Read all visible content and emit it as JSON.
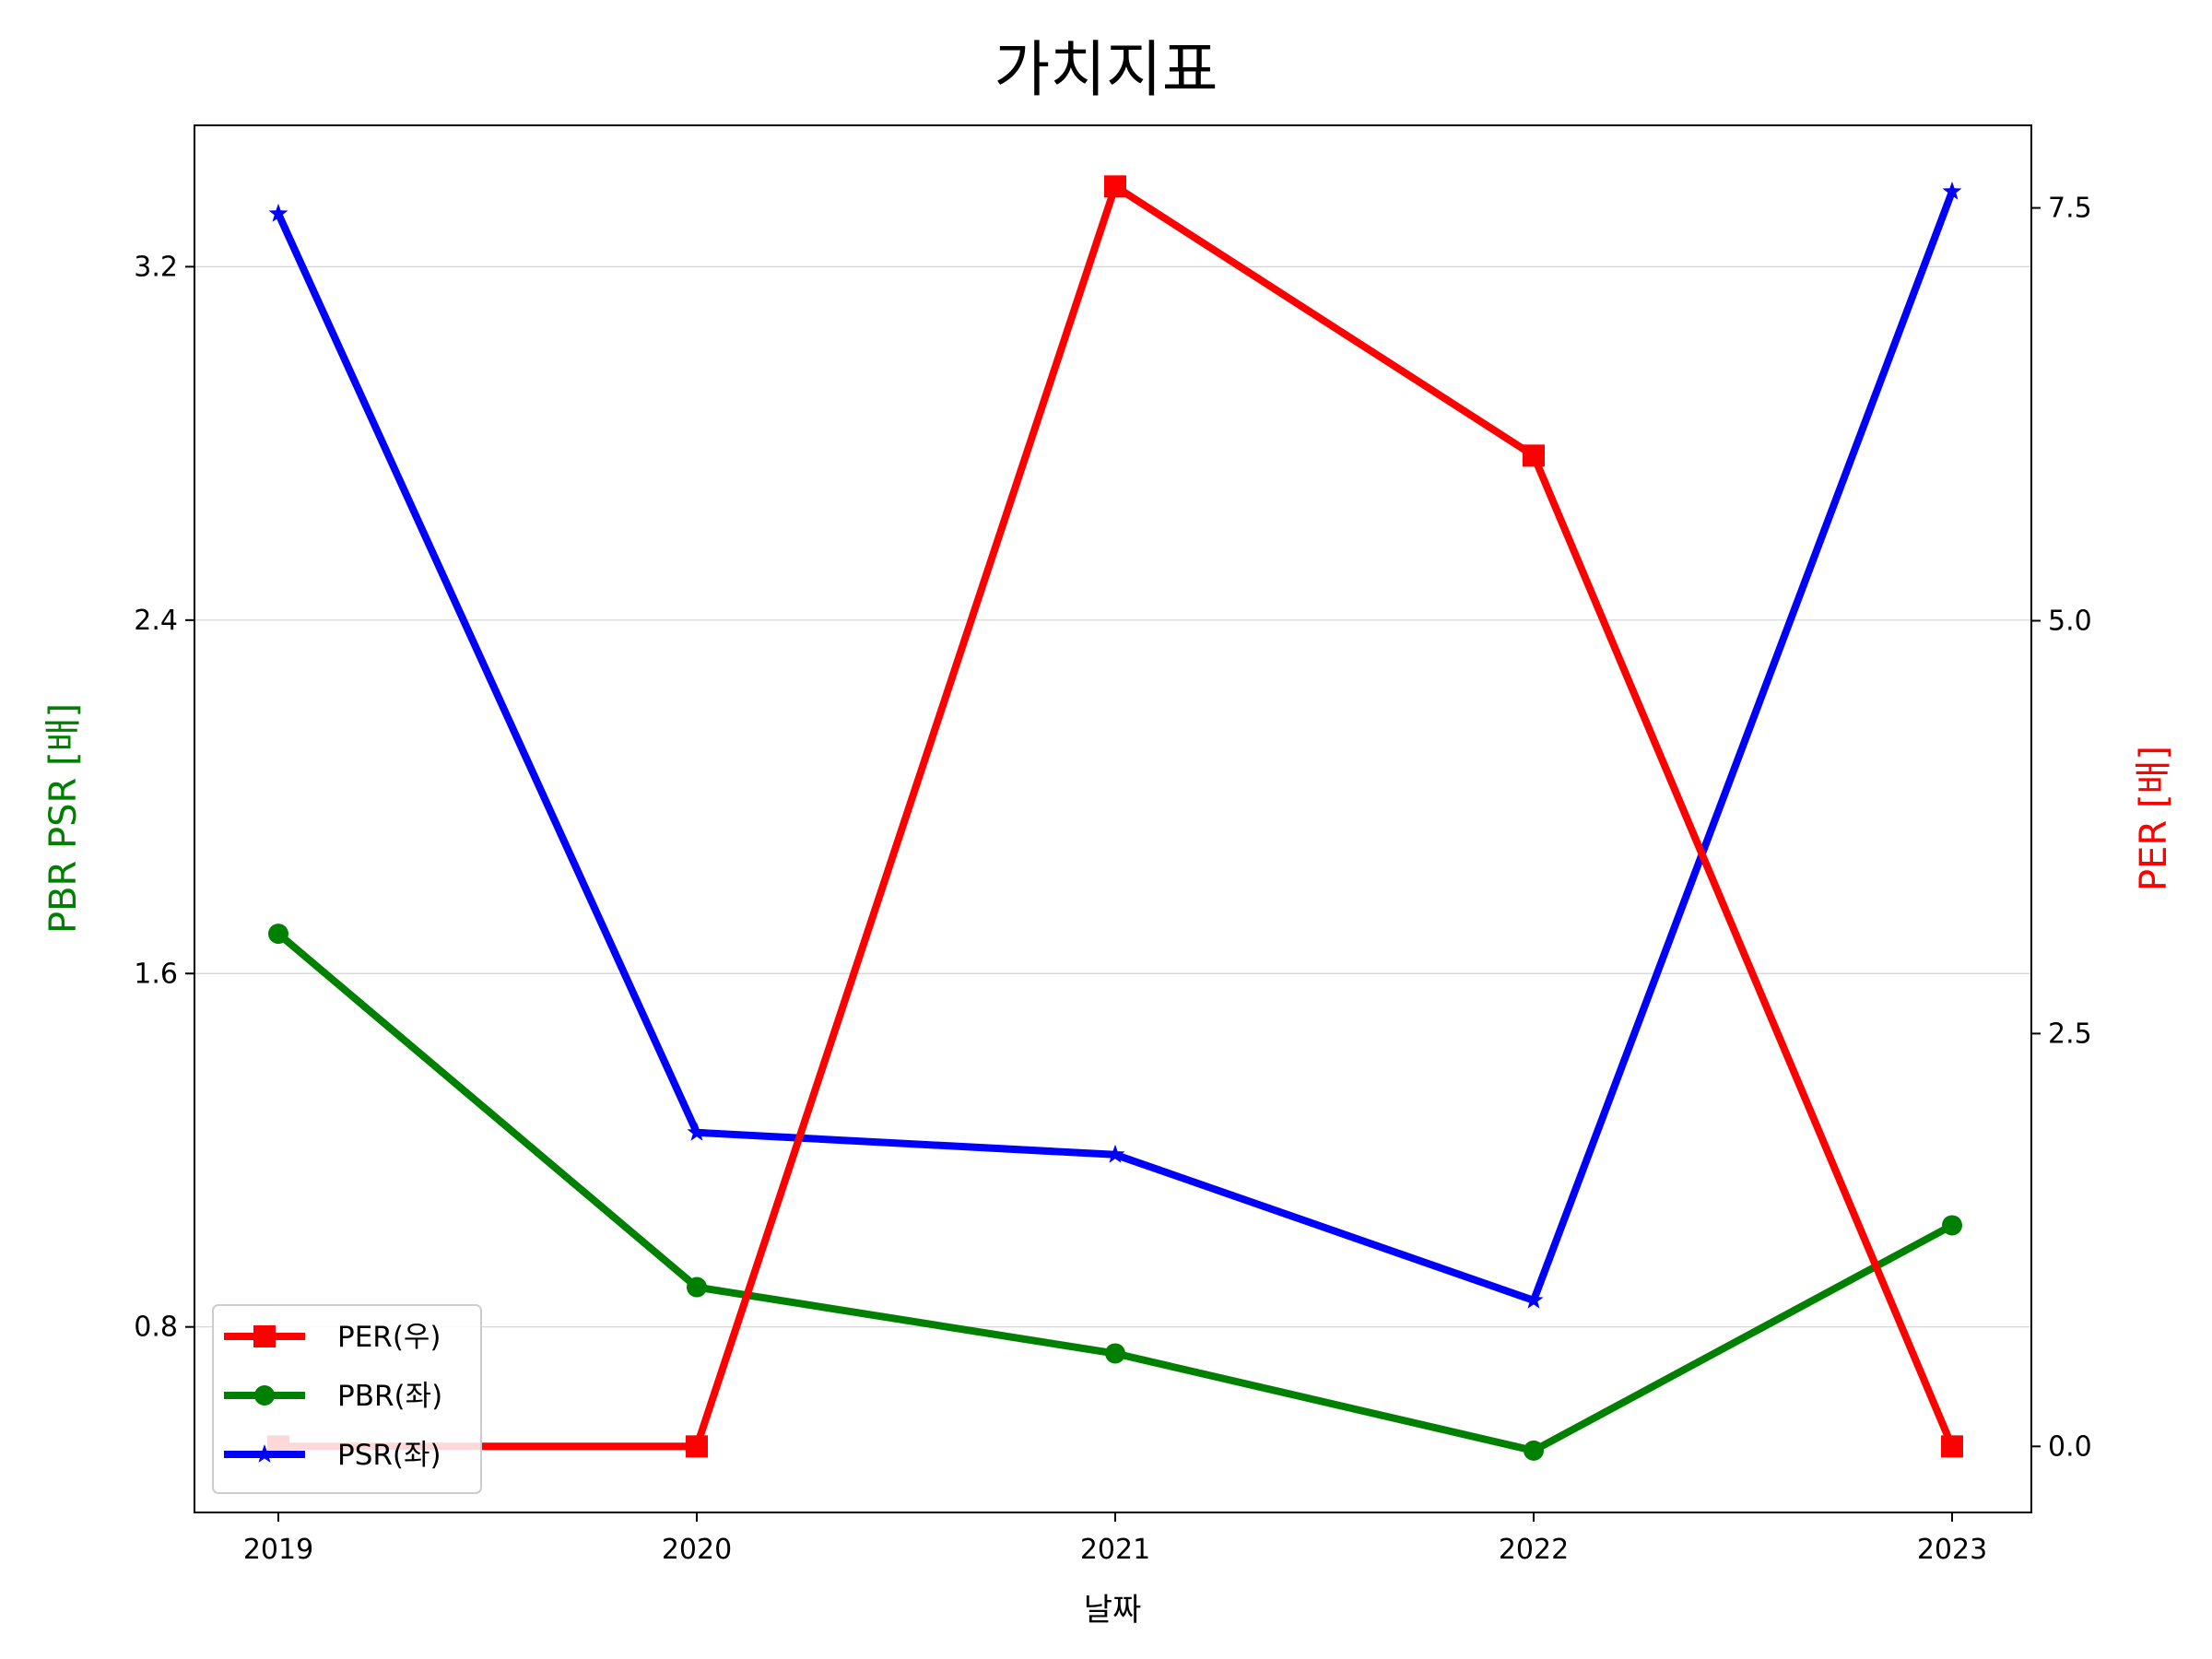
{
  "chart_data": {
    "type": "line",
    "title": "가치지표",
    "xlabel": "날짜",
    "ylabel_left": "PBR PSR [배]",
    "ylabel_right": "PER [배]",
    "categories": [
      "2019",
      "2020",
      "2021",
      "2022",
      "2023"
    ],
    "ylim_left": [
      0.38,
      3.52
    ],
    "yticks_left": [
      "0.8",
      "1.6",
      "2.4",
      "3.2"
    ],
    "ylim_right": [
      -0.4,
      8.0
    ],
    "yticks_right": [
      "0.0",
      "2.5",
      "5.0",
      "7.5"
    ],
    "grid": "horizontal (left axis)",
    "legend_position": "bottom-left",
    "series": [
      {
        "name": "PER(우)",
        "axis": "right",
        "color": "#ff0000",
        "marker": "square",
        "values": [
          0.0,
          0.0,
          7.63,
          6.0,
          0.0
        ]
      },
      {
        "name": "PBR(좌)",
        "axis": "left",
        "color": "#008000",
        "marker": "circle",
        "values": [
          1.69,
          0.89,
          0.74,
          0.52,
          1.03
        ]
      },
      {
        "name": "PSR(좌)",
        "axis": "left",
        "color": "#0000ff",
        "marker": "star",
        "values": [
          3.32,
          1.24,
          1.19,
          0.86,
          3.37
        ]
      }
    ]
  }
}
